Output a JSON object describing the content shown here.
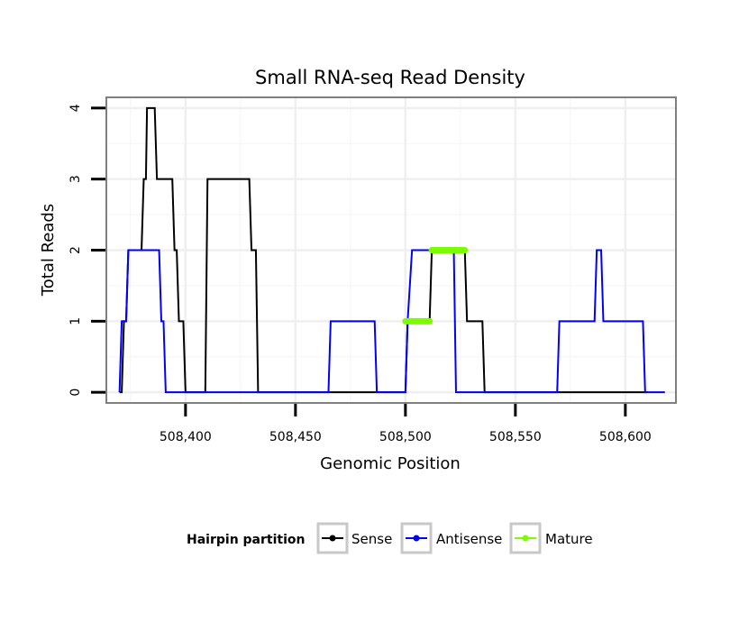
{
  "chart_data": {
    "type": "line",
    "title": "Small RNA-seq Read Density",
    "xlabel": "Genomic Position",
    "ylabel": "Total Reads",
    "xlim": [
      508364,
      508623
    ],
    "ylim": [
      -0.15,
      4.15
    ],
    "x_ticks": [
      508400,
      508450,
      508500,
      508550,
      508600
    ],
    "x_tick_labels": [
      "508,400",
      "508,450",
      "508,500",
      "508,550",
      "508,600"
    ],
    "y_ticks": [
      0,
      1,
      2,
      3,
      4
    ],
    "y_tick_labels": [
      "0",
      "1",
      "2",
      "3",
      "4"
    ],
    "grid": true,
    "legend": {
      "title": "Hairpin partition",
      "position": "bottom",
      "entries": [
        "Sense",
        "Antisense",
        "Mature"
      ]
    },
    "series": [
      {
        "name": "Sense",
        "color": "#000000",
        "points": [
          [
            508370,
            0
          ],
          [
            508371,
            0
          ],
          [
            508372,
            1
          ],
          [
            508373,
            1
          ],
          [
            508374,
            2
          ],
          [
            508380,
            2
          ],
          [
            508381,
            3
          ],
          [
            508382,
            3
          ],
          [
            508382.5,
            4
          ],
          [
            508386,
            4
          ],
          [
            508387,
            3
          ],
          [
            508394,
            3
          ],
          [
            508395,
            2
          ],
          [
            508396,
            2
          ],
          [
            508397,
            1
          ],
          [
            508399,
            1
          ],
          [
            508400,
            0
          ],
          [
            508409,
            0
          ],
          [
            508410,
            3
          ],
          [
            508429,
            3
          ],
          [
            508430,
            2
          ],
          [
            508432,
            2
          ],
          [
            508433,
            0
          ],
          [
            508500,
            0
          ],
          [
            508501,
            1
          ],
          [
            508511,
            1
          ],
          [
            508512,
            2
          ],
          [
            508527,
            2
          ],
          [
            508528,
            1
          ],
          [
            508535,
            1
          ],
          [
            508536,
            0
          ],
          [
            508610,
            0
          ]
        ]
      },
      {
        "name": "Antisense",
        "color": "#0000ff",
        "points": [
          [
            508370,
            0
          ],
          [
            508371,
            1
          ],
          [
            508373,
            1
          ],
          [
            508374,
            2
          ],
          [
            508388,
            2
          ],
          [
            508389,
            1
          ],
          [
            508390,
            1
          ],
          [
            508391,
            0
          ],
          [
            508465,
            0
          ],
          [
            508466,
            1
          ],
          [
            508486,
            1
          ],
          [
            508487,
            0
          ],
          [
            508500,
            0
          ],
          [
            508501,
            1
          ],
          [
            508503,
            2
          ],
          [
            508522,
            2
          ],
          [
            508523,
            0
          ],
          [
            508569,
            0
          ],
          [
            508570,
            1
          ],
          [
            508586,
            1
          ],
          [
            508587,
            2
          ],
          [
            508589,
            2
          ],
          [
            508590,
            1
          ],
          [
            508608,
            1
          ],
          [
            508609,
            0
          ],
          [
            508618,
            0
          ]
        ]
      },
      {
        "name": "Mature",
        "color": "#7cfc00",
        "segments": [
          [
            [
              508500,
              1
            ],
            [
              508511,
              1
            ]
          ],
          [
            [
              508512,
              2
            ],
            [
              508527,
              2
            ]
          ]
        ]
      }
    ]
  }
}
